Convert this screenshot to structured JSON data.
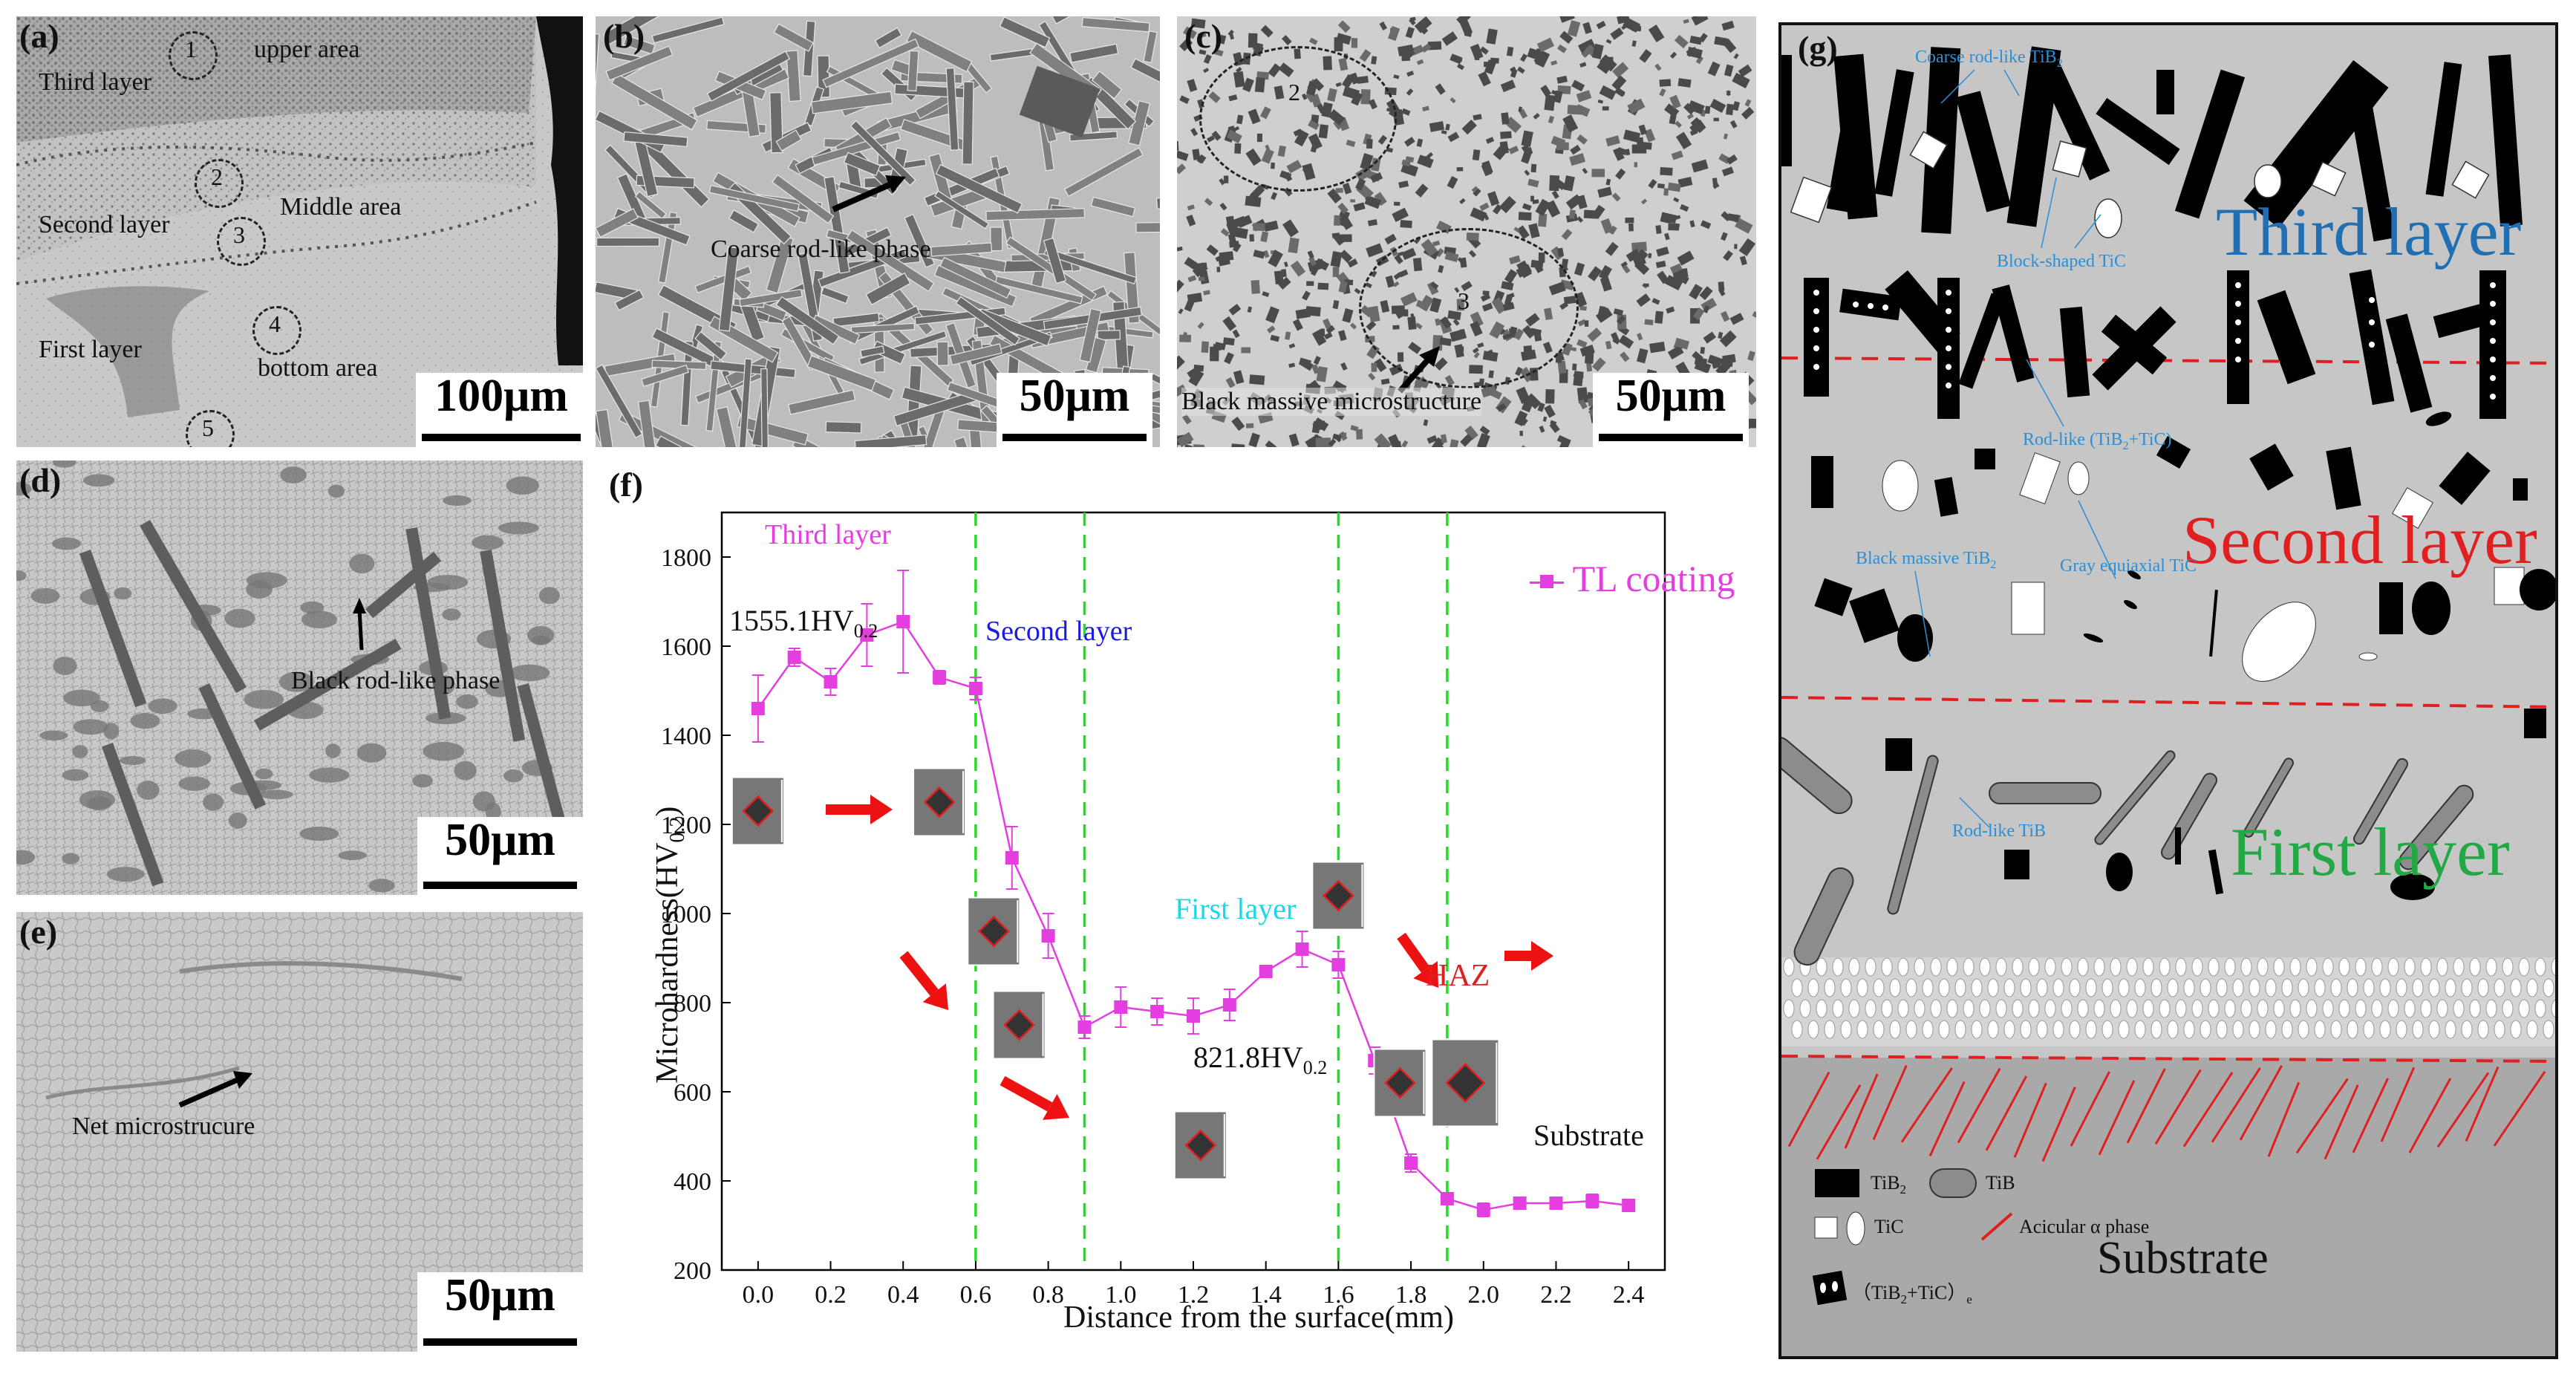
{
  "panels": {
    "a": {
      "label": "(a)",
      "annotations": {
        "third_layer": "Third layer",
        "upper_area": "upper area",
        "second_layer": "Second layer",
        "middle_area": "Middle area",
        "first_layer": "First layer",
        "bottom_area": "bottom area"
      },
      "circles": [
        "1",
        "2",
        "3",
        "4",
        "5"
      ],
      "scale": "100μm"
    },
    "b": {
      "label": "(b)",
      "annotation": "Coarse rod-like phase",
      "scale": "50μm"
    },
    "c": {
      "label": "(c)",
      "annotation": "Black massive microstructure",
      "circles": [
        "2",
        "3"
      ],
      "scale": "50μm"
    },
    "d": {
      "label": "(d)",
      "annotation": "Black rod-like phase",
      "scale": "50μm"
    },
    "e": {
      "label": "(e)",
      "annotation": "Net microstrucure",
      "scale": "50μm"
    },
    "f": {
      "label": "(f)"
    },
    "g": {
      "label": "(g)",
      "layers": {
        "third": "Third layer",
        "second": "Second layer",
        "first": "First layer",
        "substrate": "Substrate"
      },
      "annotations": {
        "coarse": "Coarse rod-like TiB",
        "coarse_sub": "2",
        "block_tic": "Block-shaped TiC",
        "rodlike_tibtic": "Rod-like (TiB",
        "rodlike_tibtic_sub": "2",
        "rodlike_tibtic_end": "+TiC)",
        "black_massive": "Black massive TiB",
        "black_massive_sub": "2",
        "gray_equiaxial": "Gray equiaxial TiC",
        "rodlike_tib": "Rod-like TiB"
      },
      "legend": {
        "tib2": "TiB",
        "tib2_sub": "2",
        "tib": "TiB",
        "tic": "TiC",
        "acicular": "Acicular α phase",
        "eutectic": "（TiB",
        "eutectic_sub": "2",
        "eutectic_end": "+TiC）",
        "eutectic_sub_e": "e"
      },
      "colors": {
        "third": "#1f6fb2",
        "second": "#e02020",
        "first": "#22a845",
        "dashed": "#e02020",
        "annotation": "#2a8fd6"
      }
    }
  },
  "chart_data": {
    "type": "line",
    "title": "",
    "xlabel": "Distance from the surface(mm)",
    "ylabel": "Microhardness(HV",
    "ylabel_sub": "0.2",
    "ylabel_end": ")",
    "xlim": [
      -0.1,
      2.5
    ],
    "ylim": [
      200,
      1900
    ],
    "xticks": [
      0.0,
      0.2,
      0.4,
      0.6,
      0.8,
      1.0,
      1.2,
      1.4,
      1.6,
      1.8,
      2.0,
      2.2,
      2.4
    ],
    "xtick_labels": [
      "0.0",
      "0.2",
      "0.4",
      "0.6",
      "0.8",
      "1.0",
      "1.2",
      "1.4",
      "1.6",
      "1.8",
      "2.0",
      "2.2",
      "2.4"
    ],
    "yticks": [
      200,
      400,
      600,
      800,
      1000,
      1200,
      1400,
      1600,
      1800
    ],
    "ytick_labels": [
      "200",
      "400",
      "600",
      "800",
      "1000",
      "1200",
      "1400",
      "1600",
      "1800"
    ],
    "series": [
      {
        "name": "TL coating",
        "color": "#e43ee0",
        "x": [
          0.0,
          0.1,
          0.2,
          0.3,
          0.4,
          0.5,
          0.6,
          0.7,
          0.8,
          0.9,
          1.0,
          1.1,
          1.2,
          1.3,
          1.4,
          1.5,
          1.6,
          1.7,
          1.8,
          1.9,
          2.0,
          2.1,
          2.2,
          2.3,
          2.4
        ],
        "y": [
          1460,
          1575,
          1520,
          1625,
          1655,
          1530,
          1505,
          1125,
          950,
          745,
          790,
          780,
          770,
          795,
          870,
          920,
          885,
          670,
          440,
          360,
          335,
          350,
          350,
          355,
          345
        ],
        "err": [
          75,
          20,
          30,
          70,
          115,
          15,
          25,
          70,
          50,
          25,
          45,
          30,
          40,
          35,
          10,
          40,
          30,
          30,
          20,
          10,
          15,
          10,
          10,
          15,
          10
        ]
      }
    ],
    "boundaries": [
      0.6,
      0.9,
      1.6,
      1.9
    ],
    "annotations": {
      "third_layer": "Third layer",
      "second_layer": "Second layer",
      "first_layer": "First layer",
      "haz": "HAZ",
      "substrate": "Substrate",
      "max_val": "1555.1HV",
      "max_sub": "0.2",
      "min_val": "821.8HV",
      "min_sub": "0.2"
    },
    "legend": "TL coating",
    "legend_position": "top-right"
  }
}
